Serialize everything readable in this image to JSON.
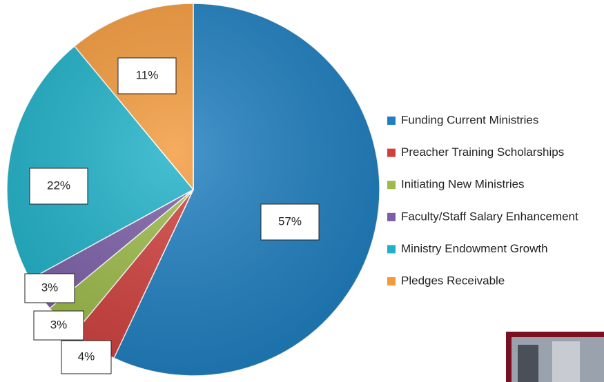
{
  "chart_data": {
    "type": "pie",
    "categories": [
      "Funding Current Ministries",
      "Preacher Training Scholarships",
      "Initiating New Ministries",
      "Faculty/Staff Salary Enhancement",
      "Ministry Endowment Growth",
      "Pledges Receivable"
    ],
    "values": [
      57,
      4,
      3,
      3,
      22,
      11
    ],
    "value_labels": [
      "57%",
      "4%",
      "3%",
      "3%",
      "22%",
      "11%"
    ],
    "colors": [
      "#1f7fc0",
      "#d0413e",
      "#9dbb4a",
      "#7b5ea7",
      "#1fb1c8",
      "#f39a3c"
    ],
    "legend": "right"
  }
}
